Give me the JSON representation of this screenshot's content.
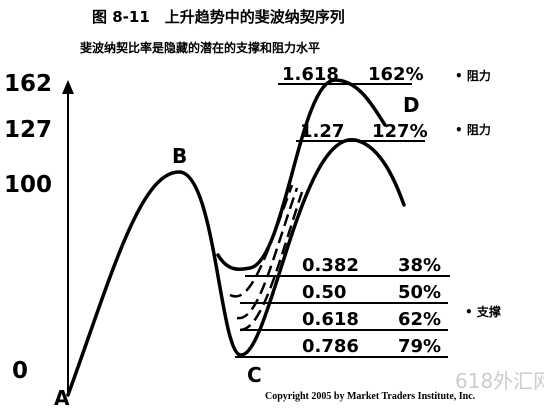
{
  "header": {
    "title": "图 8-11　上升趋势中的斐波纳契序列",
    "subtitle": "斐波纳契比率是隐藏的潜在的支撑和阻力水平"
  },
  "axis_labels": [
    "162",
    "127",
    "100",
    "0"
  ],
  "points": [
    "A",
    "B",
    "C",
    "D"
  ],
  "resistance_levels": [
    {
      "ratio": "1.618",
      "percent": "162%"
    },
    {
      "ratio": "1.27",
      "percent": "127%"
    }
  ],
  "support_levels": [
    {
      "ratio": "0.382",
      "percent": "38%"
    },
    {
      "ratio": "0.50",
      "percent": "50%"
    },
    {
      "ratio": "0.618",
      "percent": "62%"
    },
    {
      "ratio": "0.786",
      "percent": "79%"
    }
  ],
  "side_labels": [
    "• 阻力",
    "• 阻力",
    "• 支撑"
  ],
  "copyright": "Copyright 2005 by Market Traders Institute, Inc.",
  "watermark": "618外汇网"
}
